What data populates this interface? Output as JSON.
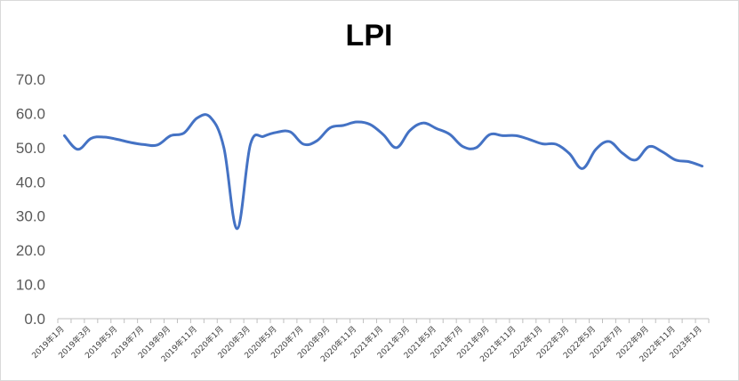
{
  "chart_data": {
    "type": "line",
    "title": "LPI",
    "xlabel": "",
    "ylabel": "",
    "ylim": [
      0,
      70
    ],
    "yticks": [
      "0.0",
      "10.0",
      "20.0",
      "30.0",
      "40.0",
      "50.0",
      "60.0",
      "70.0"
    ],
    "grid": false,
    "legend": "none",
    "x": [
      "2019年1月",
      "2019年2月",
      "2019年3月",
      "2019年4月",
      "2019年5月",
      "2019年6月",
      "2019年7月",
      "2019年8月",
      "2019年9月",
      "2019年10月",
      "2019年11月",
      "2019年12月",
      "2020年1月",
      "2020年2月",
      "2020年3月",
      "2020年4月",
      "2020年5月",
      "2020年6月",
      "2020年7月",
      "2020年8月",
      "2020年9月",
      "2020年10月",
      "2020年11月",
      "2020年12月",
      "2021年1月",
      "2021年2月",
      "2021年3月",
      "2021年4月",
      "2021年5月",
      "2021年6月",
      "2021年7月",
      "2021年8月",
      "2021年9月",
      "2021年10月",
      "2021年11月",
      "2021年12月",
      "2022年1月",
      "2022年2月",
      "2022年3月",
      "2022年4月",
      "2022年5月",
      "2022年6月",
      "2022年7月",
      "2022年8月",
      "2022年9月",
      "2022年10月",
      "2022年11月",
      "2022年12月",
      "2023年1月"
    ],
    "xtick_labels": [
      "2019年1月",
      "2019年3月",
      "2019年5月",
      "2019年7月",
      "2019年9月",
      "2019年11月",
      "2020年1月",
      "2020年3月",
      "2020年5月",
      "2020年7月",
      "2020年9月",
      "2020年11月",
      "2021年1月",
      "2021年3月",
      "2021年5月",
      "2021年7月",
      "2021年9月",
      "2021年11月",
      "2022年1月",
      "2022年3月",
      "2022年5月",
      "2022年7月",
      "2022年9月",
      "2022年11月",
      "2023年1月"
    ],
    "series": [
      {
        "color": "#4472C4",
        "values": [
          53.5,
          49.5,
          52.7,
          53.1,
          52.4,
          51.5,
          50.9,
          50.8,
          53.5,
          54.3,
          58.7,
          58.8,
          50.0,
          26.3,
          51.0,
          53.3,
          54.5,
          54.6,
          51.0,
          52.0,
          55.8,
          56.5,
          57.5,
          56.8,
          53.8,
          50.0,
          55.0,
          57.2,
          55.6,
          53.9,
          50.3,
          50.0,
          53.8,
          53.5,
          53.5,
          52.4,
          51.1,
          51.0,
          48.3,
          43.9,
          49.5,
          51.8,
          48.4,
          46.4,
          50.3,
          48.8,
          46.4,
          45.9,
          44.6
        ]
      }
    ]
  }
}
